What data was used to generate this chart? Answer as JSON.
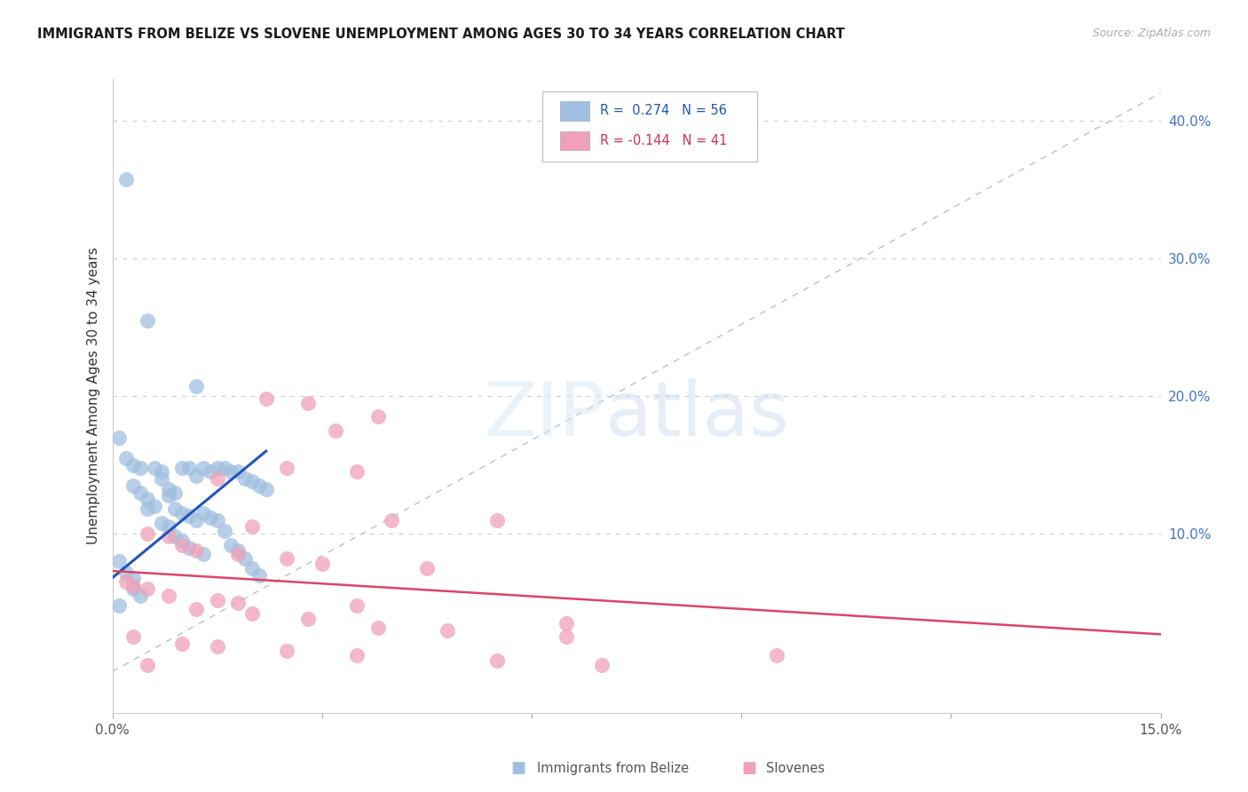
{
  "title": "IMMIGRANTS FROM BELIZE VS SLOVENE UNEMPLOYMENT AMONG AGES 30 TO 34 YEARS CORRELATION CHART",
  "source": "Source: ZipAtlas.com",
  "ylabel": "Unemployment Among Ages 30 to 34 years",
  "xlim": [
    0.0,
    0.15
  ],
  "ylim": [
    -0.03,
    0.43
  ],
  "blue_dot_color": "#a0bfe0",
  "pink_dot_color": "#f0a0b8",
  "blue_line_color": "#2255bb",
  "pink_line_color": "#dd4466",
  "diag_line_color": "#aabdd0",
  "grid_color": "#cccccc",
  "right_tick_color": "#4472c4",
  "legend_label1": "Immigrants from Belize",
  "legend_label2": "Slovenes",
  "r1": "0.274",
  "n1": "56",
  "r2": "-0.144",
  "n2": "41",
  "blue_dots_x": [
    0.002,
    0.005,
    0.012,
    0.001,
    0.002,
    0.003,
    0.003,
    0.004,
    0.004,
    0.005,
    0.005,
    0.006,
    0.006,
    0.007,
    0.007,
    0.007,
    0.008,
    0.008,
    0.008,
    0.009,
    0.009,
    0.009,
    0.01,
    0.01,
    0.01,
    0.011,
    0.011,
    0.011,
    0.012,
    0.012,
    0.013,
    0.013,
    0.013,
    0.014,
    0.014,
    0.015,
    0.015,
    0.016,
    0.016,
    0.017,
    0.017,
    0.018,
    0.018,
    0.019,
    0.019,
    0.02,
    0.02,
    0.021,
    0.021,
    0.022,
    0.001,
    0.002,
    0.003,
    0.003,
    0.004,
    0.001
  ],
  "blue_dots_y": [
    0.357,
    0.255,
    0.207,
    0.17,
    0.155,
    0.15,
    0.135,
    0.148,
    0.13,
    0.125,
    0.118,
    0.148,
    0.12,
    0.145,
    0.14,
    0.108,
    0.132,
    0.128,
    0.105,
    0.13,
    0.118,
    0.098,
    0.148,
    0.115,
    0.095,
    0.148,
    0.113,
    0.09,
    0.142,
    0.11,
    0.148,
    0.115,
    0.085,
    0.145,
    0.112,
    0.148,
    0.11,
    0.148,
    0.102,
    0.145,
    0.092,
    0.145,
    0.088,
    0.14,
    0.082,
    0.138,
    0.075,
    0.135,
    0.07,
    0.132,
    0.08,
    0.072,
    0.068,
    0.06,
    0.055,
    0.048
  ],
  "pink_dots_x": [
    0.022,
    0.028,
    0.038,
    0.032,
    0.025,
    0.035,
    0.015,
    0.04,
    0.055,
    0.02,
    0.005,
    0.008,
    0.01,
    0.012,
    0.018,
    0.025,
    0.03,
    0.045,
    0.002,
    0.003,
    0.005,
    0.008,
    0.015,
    0.018,
    0.035,
    0.065,
    0.012,
    0.02,
    0.028,
    0.038,
    0.048,
    0.065,
    0.003,
    0.01,
    0.015,
    0.025,
    0.035,
    0.095,
    0.055,
    0.07,
    0.005
  ],
  "pink_dots_y": [
    0.198,
    0.195,
    0.185,
    0.175,
    0.148,
    0.145,
    0.14,
    0.11,
    0.11,
    0.105,
    0.1,
    0.098,
    0.092,
    0.088,
    0.085,
    0.082,
    0.078,
    0.075,
    0.065,
    0.062,
    0.06,
    0.055,
    0.052,
    0.05,
    0.048,
    0.035,
    0.045,
    0.042,
    0.038,
    0.032,
    0.03,
    0.025,
    0.025,
    0.02,
    0.018,
    0.015,
    0.012,
    0.012,
    0.008,
    0.005,
    0.005
  ]
}
